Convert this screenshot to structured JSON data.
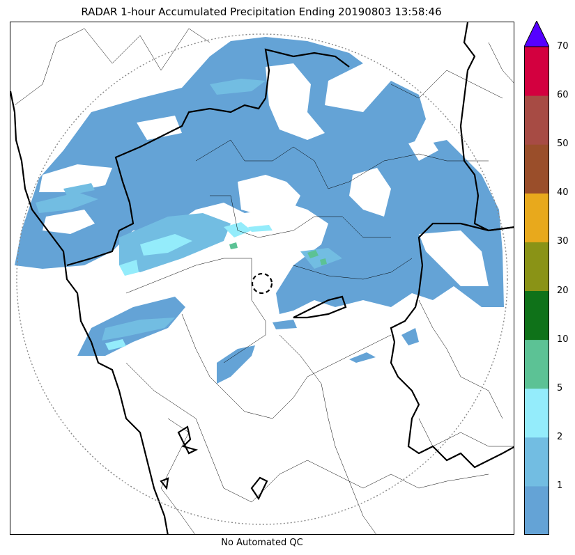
{
  "title": "RADAR 1-hour Accumulated Precipitation Ending 20190803 13:58:46",
  "footer": "No Automated QC",
  "colors": {
    "c0": "#64a3d6",
    "c1": "#72bde2",
    "c2": "#94ecfb",
    "c3": "#5cc295",
    "c4": "#0f7219",
    "c5": "#8a9316",
    "c6": "#e8a91c",
    "c7": "#9a4e2a",
    "c8": "#a74b44",
    "c9": "#d3003f",
    "extend": "#5500ff",
    "border": "#000000",
    "range_ring": "#888888"
  },
  "colorbar": {
    "tick_labels": [
      "1",
      "2",
      "5",
      "10",
      "20",
      "30",
      "40",
      "50",
      "60",
      "70"
    ],
    "extend": "max"
  }
}
